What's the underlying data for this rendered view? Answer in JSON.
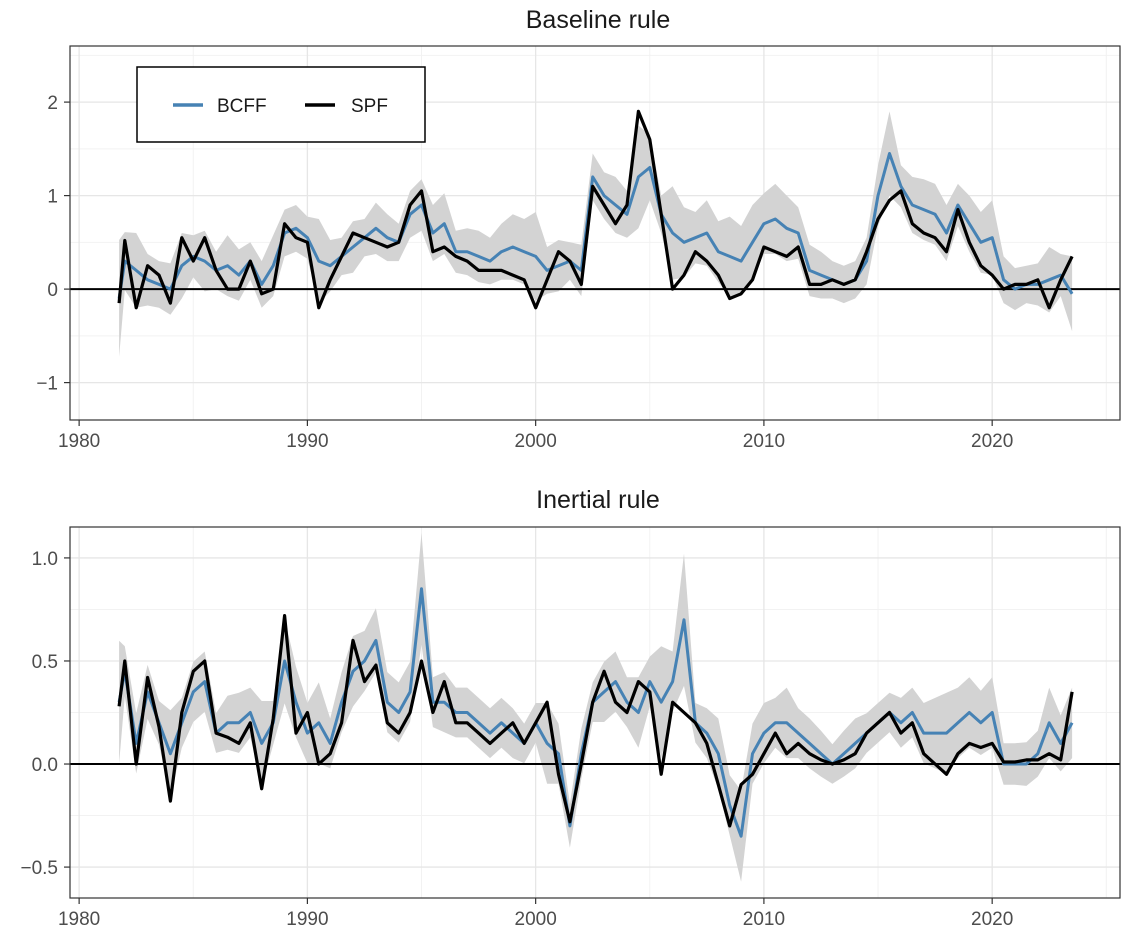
{
  "colors": {
    "bcff": "#4682b4",
    "spf": "#000000",
    "band": "#d3d3d3",
    "grid_major": "#e6e6e6",
    "grid_minor": "#f2f2f2"
  },
  "legend": {
    "items": [
      {
        "label": "BCFF",
        "color": "#4682b4"
      },
      {
        "label": "SPF",
        "color": "#000000"
      }
    ],
    "placement": "top-left"
  },
  "chart_data": [
    {
      "type": "line",
      "title": "Baseline rule",
      "xlabel": "",
      "ylabel": "",
      "xlim": [
        1979.6,
        2025.6
      ],
      "ylim": [
        -1.4,
        2.6
      ],
      "xticks": [
        1980,
        1990,
        2000,
        2010,
        2020
      ],
      "xtick_labels": [
        "1980",
        "1990",
        "2000",
        "2010",
        "2020"
      ],
      "yticks": [
        -1,
        0,
        1,
        2
      ],
      "ytick_labels": [
        "−1",
        "0",
        "1",
        "2"
      ],
      "hline": 0,
      "grid": true,
      "legend": true,
      "series": [
        {
          "name": "BCFF",
          "x": [
            1981.75,
            1982.0,
            1982.5,
            1983.0,
            1983.5,
            1984.0,
            1984.5,
            1985.0,
            1985.5,
            1986.0,
            1986.5,
            1987.0,
            1987.5,
            1988.0,
            1988.5,
            1989.0,
            1989.5,
            1990.0,
            1990.5,
            1991.0,
            1991.5,
            1992.0,
            1992.5,
            1993.0,
            1993.5,
            1994.0,
            1994.5,
            1995.0,
            1995.5,
            1996.0,
            1996.5,
            1997.0,
            1997.5,
            1998.0,
            1998.5,
            1999.0,
            1999.5,
            2000.0,
            2000.5,
            2001.0,
            2001.5,
            2002.0,
            2002.5,
            2003.0,
            2003.5,
            2004.0,
            2004.5,
            2005.0,
            2005.5,
            2006.0,
            2006.5,
            2007.0,
            2007.5,
            2008.0,
            2008.5,
            2009.0,
            2009.5,
            2010.0,
            2010.5,
            2011.0,
            2011.5,
            2012.0,
            2012.5,
            2013.0,
            2013.5,
            2014.0,
            2014.5,
            2015.0,
            2015.5,
            2016.0,
            2016.5,
            2017.0,
            2017.5,
            2018.0,
            2018.5,
            2019.0,
            2019.5,
            2020.0,
            2020.5,
            2021.0,
            2021.5,
            2022.0,
            2022.5,
            2023.0,
            2023.5
          ],
          "values": [
            -0.1,
            0.3,
            0.2,
            0.1,
            0.05,
            0.0,
            0.25,
            0.35,
            0.3,
            0.2,
            0.25,
            0.15,
            0.3,
            0.05,
            0.25,
            0.6,
            0.65,
            0.55,
            0.3,
            0.25,
            0.35,
            0.45,
            0.55,
            0.65,
            0.55,
            0.5,
            0.8,
            0.9,
            0.6,
            0.7,
            0.4,
            0.4,
            0.35,
            0.3,
            0.4,
            0.45,
            0.4,
            0.35,
            0.2,
            0.25,
            0.3,
            0.2,
            1.2,
            1.0,
            0.9,
            0.8,
            1.2,
            1.3,
            0.8,
            0.6,
            0.5,
            0.55,
            0.6,
            0.4,
            0.35,
            0.3,
            0.5,
            0.7,
            0.75,
            0.65,
            0.6,
            0.2,
            0.15,
            0.1,
            0.05,
            0.1,
            0.3,
            1.0,
            1.45,
            1.1,
            0.9,
            0.85,
            0.8,
            0.6,
            0.9,
            0.7,
            0.5,
            0.55,
            0.1,
            0.0,
            0.05,
            0.05,
            0.1,
            0.15,
            -0.05
          ]
        },
        {
          "name": "SPF",
          "x": [
            1981.75,
            1982.0,
            1982.5,
            1983.0,
            1983.5,
            1984.0,
            1984.5,
            1985.0,
            1985.5,
            1986.0,
            1986.5,
            1987.0,
            1987.5,
            1988.0,
            1988.5,
            1989.0,
            1989.5,
            1990.0,
            1990.5,
            1991.0,
            1991.5,
            1992.0,
            1992.5,
            1993.0,
            1993.5,
            1994.0,
            1994.5,
            1995.0,
            1995.5,
            1996.0,
            1996.5,
            1997.0,
            1997.5,
            1998.0,
            1998.5,
            1999.0,
            1999.5,
            2000.0,
            2000.5,
            2001.0,
            2001.5,
            2002.0,
            2002.5,
            2003.0,
            2003.5,
            2004.0,
            2004.5,
            2005.0,
            2005.5,
            2006.0,
            2006.5,
            2007.0,
            2007.5,
            2008.0,
            2008.5,
            2009.0,
            2009.5,
            2010.0,
            2010.5,
            2011.0,
            2011.5,
            2012.0,
            2012.5,
            2013.0,
            2013.5,
            2014.0,
            2014.5,
            2015.0,
            2015.5,
            2016.0,
            2016.5,
            2017.0,
            2017.5,
            2018.0,
            2018.5,
            2019.0,
            2019.5,
            2020.0,
            2020.5,
            2021.0,
            2021.5,
            2022.0,
            2022.5,
            2023.0,
            2023.5
          ],
          "values": [
            -0.15,
            0.52,
            -0.2,
            0.25,
            0.15,
            -0.15,
            0.55,
            0.3,
            0.55,
            0.2,
            0.0,
            0.0,
            0.3,
            -0.05,
            0.0,
            0.7,
            0.55,
            0.5,
            -0.2,
            0.1,
            0.35,
            0.6,
            0.55,
            0.5,
            0.45,
            0.5,
            0.9,
            1.05,
            0.4,
            0.45,
            0.35,
            0.3,
            0.2,
            0.2,
            0.2,
            0.15,
            0.1,
            -0.2,
            0.1,
            0.4,
            0.3,
            0.05,
            1.1,
            0.9,
            0.7,
            0.9,
            1.9,
            1.6,
            0.8,
            0.0,
            0.15,
            0.4,
            0.3,
            0.15,
            -0.1,
            -0.05,
            0.1,
            0.45,
            0.4,
            0.35,
            0.45,
            0.05,
            0.05,
            0.1,
            0.05,
            0.1,
            0.4,
            0.75,
            0.95,
            1.05,
            0.7,
            0.6,
            0.55,
            0.4,
            0.85,
            0.5,
            0.25,
            0.15,
            0.0,
            0.05,
            0.05,
            0.1,
            -0.2,
            0.1,
            0.35
          ]
        }
      ]
    },
    {
      "type": "line",
      "title": "Inertial rule",
      "xlabel": "",
      "ylabel": "",
      "xlim": [
        1979.6,
        2025.6
      ],
      "ylim": [
        -0.65,
        1.15
      ],
      "xticks": [
        1980,
        1990,
        2000,
        2010,
        2020
      ],
      "xtick_labels": [
        "1980",
        "1990",
        "2000",
        "2010",
        "2020"
      ],
      "yticks": [
        -0.5,
        0.0,
        0.5,
        1.0
      ],
      "ytick_labels": [
        "−0.5",
        "0.0",
        "0.5",
        "1.0"
      ],
      "hline": 0,
      "grid": true,
      "legend": false,
      "series": [
        {
          "name": "BCFF",
          "x": [
            1981.75,
            1982.0,
            1982.5,
            1983.0,
            1983.5,
            1984.0,
            1984.5,
            1985.0,
            1985.5,
            1986.0,
            1986.5,
            1987.0,
            1987.5,
            1988.0,
            1988.5,
            1989.0,
            1989.5,
            1990.0,
            1990.5,
            1991.0,
            1991.5,
            1992.0,
            1992.5,
            1993.0,
            1993.5,
            1994.0,
            1994.5,
            1995.0,
            1995.5,
            1996.0,
            1996.5,
            1997.0,
            1997.5,
            1998.0,
            1998.5,
            1999.0,
            1999.5,
            2000.0,
            2000.5,
            2001.0,
            2001.5,
            2002.0,
            2002.5,
            2003.0,
            2003.5,
            2004.0,
            2004.5,
            2005.0,
            2005.5,
            2006.0,
            2006.5,
            2007.0,
            2007.5,
            2008.0,
            2008.5,
            2009.0,
            2009.5,
            2010.0,
            2010.5,
            2011.0,
            2011.5,
            2012.0,
            2012.5,
            2013.0,
            2013.5,
            2014.0,
            2014.5,
            2015.0,
            2015.5,
            2016.0,
            2016.5,
            2017.0,
            2017.5,
            2018.0,
            2018.5,
            2019.0,
            2019.5,
            2020.0,
            2020.5,
            2021.0,
            2021.5,
            2022.0,
            2022.5,
            2023.0,
            2023.5
          ],
          "values": [
            0.3,
            0.45,
            0.1,
            0.35,
            0.2,
            0.05,
            0.2,
            0.35,
            0.4,
            0.15,
            0.2,
            0.2,
            0.25,
            0.1,
            0.2,
            0.5,
            0.3,
            0.15,
            0.2,
            0.1,
            0.3,
            0.45,
            0.5,
            0.6,
            0.3,
            0.25,
            0.35,
            0.85,
            0.3,
            0.3,
            0.25,
            0.25,
            0.2,
            0.15,
            0.2,
            0.15,
            0.1,
            0.2,
            0.1,
            0.05,
            -0.3,
            0.05,
            0.3,
            0.35,
            0.4,
            0.3,
            0.25,
            0.4,
            0.3,
            0.4,
            0.7,
            0.2,
            0.15,
            0.05,
            -0.2,
            -0.35,
            0.05,
            0.15,
            0.2,
            0.2,
            0.15,
            0.1,
            0.05,
            0.0,
            0.05,
            0.1,
            0.15,
            0.2,
            0.25,
            0.2,
            0.25,
            0.15,
            0.15,
            0.15,
            0.2,
            0.25,
            0.2,
            0.25,
            0.0,
            0.0,
            0.0,
            0.05,
            0.2,
            0.1,
            0.2
          ]
        },
        {
          "name": "SPF",
          "x": [
            1981.75,
            1982.0,
            1982.5,
            1983.0,
            1983.5,
            1984.0,
            1984.5,
            1985.0,
            1985.5,
            1986.0,
            1986.5,
            1987.0,
            1987.5,
            1988.0,
            1988.5,
            1989.0,
            1989.5,
            1990.0,
            1990.5,
            1991.0,
            1991.5,
            1992.0,
            1992.5,
            1993.0,
            1993.5,
            1994.0,
            1994.5,
            1995.0,
            1995.5,
            1996.0,
            1996.5,
            1997.0,
            1997.5,
            1998.0,
            1998.5,
            1999.0,
            1999.5,
            2000.0,
            2000.5,
            2001.0,
            2001.5,
            2002.0,
            2002.5,
            2003.0,
            2003.5,
            2004.0,
            2004.5,
            2005.0,
            2005.5,
            2006.0,
            2006.5,
            2007.0,
            2007.5,
            2008.0,
            2008.5,
            2009.0,
            2009.5,
            2010.0,
            2010.5,
            2011.0,
            2011.5,
            2012.0,
            2012.5,
            2013.0,
            2013.5,
            2014.0,
            2014.5,
            2015.0,
            2015.5,
            2016.0,
            2016.5,
            2017.0,
            2017.5,
            2018.0,
            2018.5,
            2019.0,
            2019.5,
            2020.0,
            2020.5,
            2021.0,
            2021.5,
            2022.0,
            2022.5,
            2023.0,
            2023.5
          ],
          "values": [
            0.28,
            0.5,
            0.0,
            0.42,
            0.18,
            -0.18,
            0.25,
            0.45,
            0.5,
            0.15,
            0.13,
            0.1,
            0.2,
            -0.12,
            0.22,
            0.72,
            0.15,
            0.25,
            0.0,
            0.05,
            0.2,
            0.6,
            0.4,
            0.48,
            0.2,
            0.15,
            0.25,
            0.5,
            0.25,
            0.4,
            0.2,
            0.2,
            0.15,
            0.1,
            0.15,
            0.2,
            0.1,
            0.2,
            0.3,
            -0.05,
            -0.28,
            0.0,
            0.3,
            0.45,
            0.3,
            0.25,
            0.4,
            0.35,
            -0.05,
            0.3,
            0.25,
            0.2,
            0.1,
            -0.1,
            -0.3,
            -0.1,
            -0.05,
            0.05,
            0.15,
            0.05,
            0.1,
            0.05,
            0.02,
            0.0,
            0.02,
            0.05,
            0.15,
            0.2,
            0.25,
            0.15,
            0.2,
            0.05,
            0.0,
            -0.05,
            0.05,
            0.1,
            0.08,
            0.1,
            0.01,
            0.01,
            0.02,
            0.02,
            0.05,
            0.02,
            0.35
          ]
        }
      ]
    }
  ]
}
